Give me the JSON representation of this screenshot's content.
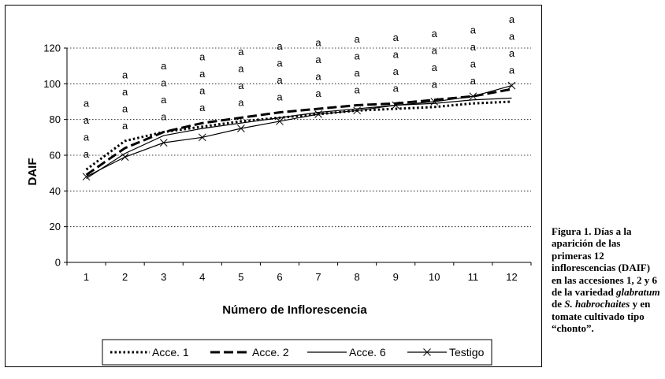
{
  "chart_data": {
    "type": "line",
    "xlabel": "Número de Inflorescencia",
    "ylabel": "DAIF",
    "x": [
      1,
      2,
      3,
      4,
      5,
      6,
      7,
      8,
      9,
      10,
      11,
      12
    ],
    "ylim": [
      0,
      120
    ],
    "yticks": [
      0,
      20,
      40,
      60,
      80,
      100,
      120
    ],
    "grid": "horizontal dotted",
    "legend_position": "bottom",
    "series": [
      {
        "name": "Acce. 1",
        "style": "dotted",
        "values": [
          52,
          68,
          73,
          76,
          79,
          81,
          83,
          85,
          86,
          87,
          89,
          90
        ]
      },
      {
        "name": "Acce. 2",
        "style": "dashed",
        "values": [
          49,
          64,
          73,
          78,
          81,
          84,
          86,
          88,
          89,
          91,
          93,
          97
        ]
      },
      {
        "name": "Acce. 6",
        "style": "solid",
        "values": [
          47,
          61,
          71,
          75,
          78,
          81,
          84,
          86,
          88,
          89,
          91,
          92
        ]
      },
      {
        "name": "Testigo",
        "style": "solid-x",
        "values": [
          48,
          59,
          67,
          70,
          75,
          79,
          83,
          85,
          88,
          90,
          93,
          99
        ]
      }
    ],
    "annotations": {
      "letter": "a",
      "counts": [
        4,
        4,
        4,
        4,
        4,
        4,
        4,
        4,
        4,
        4,
        4,
        4
      ]
    }
  },
  "caption": {
    "part1": "Figura 1. Días a la aparición de las primeras 12 inflorescencias (DAIF) en las accesiones 1, 2 y 6 de la variedad ",
    "italic1": "glabratum",
    "part2": " de ",
    "italic2": "S. habrochaites",
    "part3": " y en tomate cultivado tipo “chonto”."
  }
}
